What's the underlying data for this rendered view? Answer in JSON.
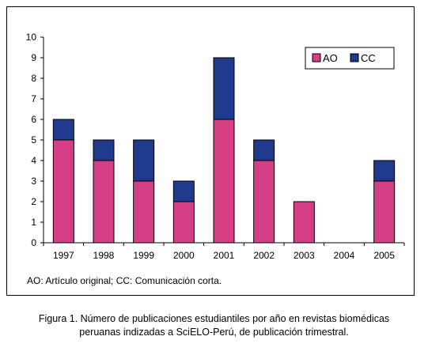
{
  "chart_data": {
    "type": "bar",
    "stacked": true,
    "categories": [
      "1997",
      "1998",
      "1999",
      "2000",
      "2001",
      "2002",
      "2003",
      "2004",
      "2005"
    ],
    "series": [
      {
        "name": "AO",
        "values": [
          5,
          4,
          3,
          2,
          6,
          4,
          2,
          0,
          3
        ],
        "color": "#D63F86"
      },
      {
        "name": "CC",
        "values": [
          1,
          1,
          2,
          1,
          3,
          1,
          0,
          0,
          1
        ],
        "color": "#1F3A8C"
      }
    ],
    "ylim": [
      0,
      10
    ],
    "yticks": [
      0,
      1,
      2,
      3,
      4,
      5,
      6,
      7,
      8,
      9,
      10
    ],
    "grid": false,
    "legend_position": "top-right"
  },
  "note": "AO: Artículo original; CC: Comunicación corta.",
  "caption": {
    "line1": "Figura 1. Número de publicaciones estudiantiles por año en revistas biomédicas",
    "line2": "peruanas indizadas a SciELO-Perú, de publicación trimestral."
  }
}
